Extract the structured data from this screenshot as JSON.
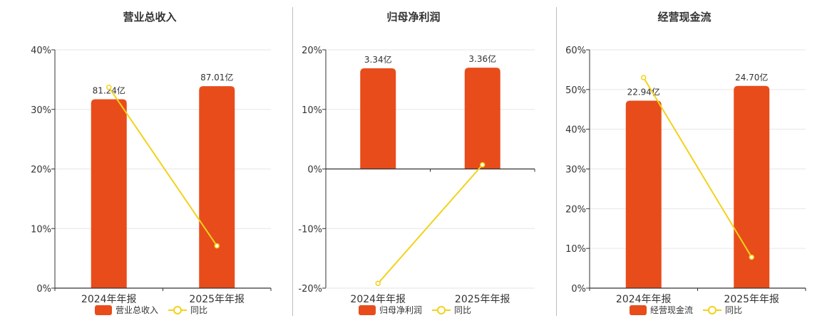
{
  "colors": {
    "bar": "#e84c1b",
    "line": "#f2d21b",
    "axis": "#333333",
    "grid": "#e6e6e6",
    "text": "#333333"
  },
  "chart_data": [
    {
      "type": "bar",
      "title": "营业总收入",
      "categories": [
        "2024年年报",
        "2025年年报"
      ],
      "ylim": [
        0,
        40
      ],
      "yticks": [
        "40%",
        "30%",
        "20%",
        "10%",
        "0%"
      ],
      "ytick_values": [
        40,
        30,
        20,
        10,
        0
      ],
      "grid": true,
      "legend_position": "bottom",
      "series": [
        {
          "name": "营业总收入",
          "kind": "bar",
          "values": [
            31.7,
            33.9
          ],
          "labels": [
            "81.24亿",
            "87.01亿"
          ]
        },
        {
          "name": "同比",
          "kind": "line",
          "values": [
            33.7,
            7.1
          ]
        }
      ]
    },
    {
      "type": "bar",
      "title": "归母净利润",
      "categories": [
        "2024年年报",
        "2025年年报"
      ],
      "ylim": [
        -20,
        20
      ],
      "yticks": [
        "20%",
        "10%",
        "0%",
        "-10%",
        "-20%"
      ],
      "ytick_values": [
        20,
        10,
        0,
        -10,
        -20
      ],
      "grid": true,
      "legend_position": "bottom",
      "series": [
        {
          "name": "归母净利润",
          "kind": "bar",
          "values": [
            16.9,
            17.0
          ],
          "labels": [
            "3.34亿",
            "3.36亿"
          ]
        },
        {
          "name": "同比",
          "kind": "line",
          "values": [
            -19.2,
            0.7
          ]
        }
      ]
    },
    {
      "type": "bar",
      "title": "经营现金流",
      "categories": [
        "2024年年报",
        "2025年年报"
      ],
      "ylim": [
        0,
        60
      ],
      "yticks": [
        "60%",
        "50%",
        "40%",
        "30%",
        "20%",
        "10%",
        "0%"
      ],
      "ytick_values": [
        60,
        50,
        40,
        30,
        20,
        10,
        0
      ],
      "grid": true,
      "legend_position": "bottom",
      "series": [
        {
          "name": "经营现金流",
          "kind": "bar",
          "values": [
            47.2,
            50.9
          ],
          "labels": [
            "22.94亿",
            "24.70亿"
          ]
        },
        {
          "name": "同比",
          "kind": "line",
          "values": [
            53.0,
            7.8
          ]
        }
      ]
    }
  ]
}
